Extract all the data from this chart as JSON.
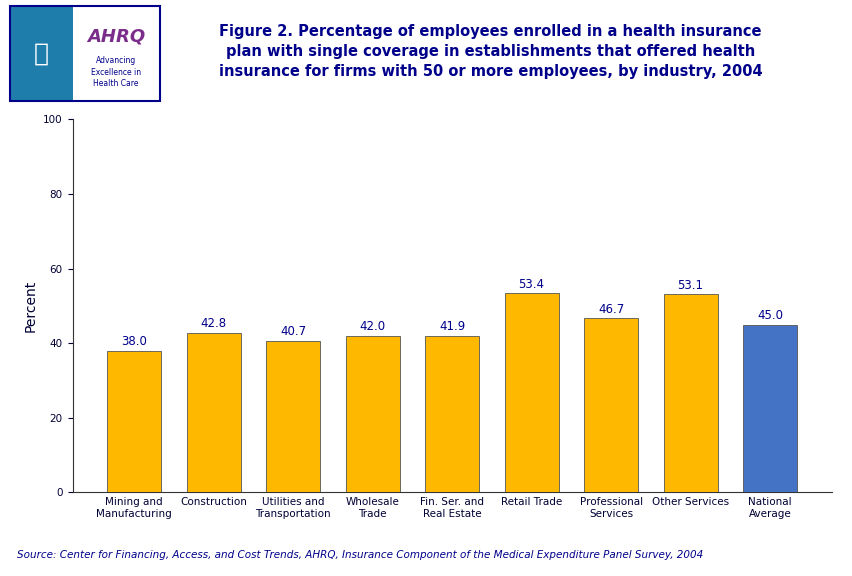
{
  "categories": [
    "Mining and\nManufacturing",
    "Construction",
    "Utilities and\nTransportation",
    "Wholesale\nTrade",
    "Fin. Ser. and\nReal Estate",
    "Retail Trade",
    "Professional\nServices",
    "Other Services",
    "National\nAverage"
  ],
  "values": [
    38.0,
    42.8,
    40.7,
    42.0,
    41.9,
    53.4,
    46.7,
    53.1,
    45.0
  ],
  "bar_colors": [
    "#FFB800",
    "#FFB800",
    "#FFB800",
    "#FFB800",
    "#FFB800",
    "#FFB800",
    "#FFB800",
    "#FFB800",
    "#4472C4"
  ],
  "ylabel": "Percent",
  "ylim": [
    0,
    100
  ],
  "yticks": [
    0,
    20,
    40,
    60,
    80,
    100
  ],
  "title_line1": "Figure 2. Percentage of employees enrolled in a health insurance",
  "title_line2": "plan with single coverage in establishments that offered health",
  "title_line3": "insurance for firms with 50 or more employees, by industry, 2004",
  "source_text": "Source: Center for Financing, Access, and Cost Trends, AHRQ, Insurance Component of the Medical Expenditure Panel Survey, 2004",
  "bg_color": "#FFFFFF",
  "plot_bg_color": "#FFFFFF",
  "bar_edge_color": "#555555",
  "label_color": "#000033",
  "title_color": "#00008B",
  "source_color": "#00008B",
  "value_label_color": "#00008B",
  "separator_color": "#00008B",
  "ahrq_box_bg": "#FFFFFF",
  "ahrq_box_border": "#00008B",
  "hhs_bg": "#1E7DAA",
  "ahrq_text_color": "#7B2D8B",
  "ahrq_sub_color": "#00008B",
  "value_fontsize": 8.5,
  "axis_label_fontsize": 10,
  "tick_label_fontsize": 7.5,
  "source_fontsize": 7.5,
  "title_fontsize": 10.5
}
